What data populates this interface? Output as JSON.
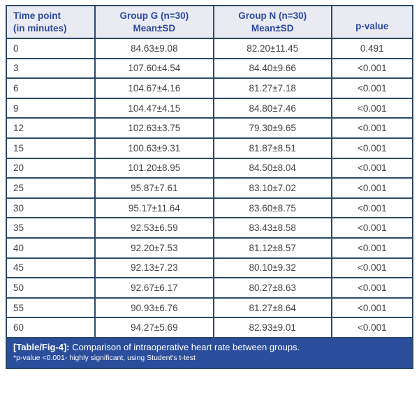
{
  "colors": {
    "border": "#2b4a6b",
    "header_bg": "#eaeaf2",
    "header_text": "#2b4b9f",
    "caption_bg": "#2a4d9c",
    "body_text": "#434343"
  },
  "table": {
    "headers": [
      "Time point\n(in minutes)",
      "Group G (n=30)\nMean±SD",
      "Group N (n=30)\nMean±SD",
      "p-value"
    ],
    "rows": [
      [
        "0",
        "84.63±9.08",
        "82.20±11.45",
        "0.491"
      ],
      [
        "3",
        "107.60±4.54",
        "84.40±9.66",
        "<0.001"
      ],
      [
        "6",
        "104.67±4.16",
        "81.27±7.18",
        "<0.001"
      ],
      [
        "9",
        "104.47±4.15",
        "84.80±7.46",
        "<0.001"
      ],
      [
        "12",
        "102.63±3.75",
        "79.30±9.65",
        "<0.001"
      ],
      [
        "15",
        "100.63±9.31",
        "81.87±8.51",
        "<0.001"
      ],
      [
        "20",
        "101.20±8.95",
        "84.50±8.04",
        "<0.001"
      ],
      [
        "25",
        "95.87±7.61",
        "83.10±7.02",
        "<0.001"
      ],
      [
        "30",
        "95.17±11.64",
        "83.60±8.75",
        "<0.001"
      ],
      [
        "35",
        "92.53±6.59",
        "83.43±8.58",
        "<0.001"
      ],
      [
        "40",
        "92.20±7.53",
        "81.12±8.57",
        "<0.001"
      ],
      [
        "45",
        "92.13±7.23",
        "80.10±9.32",
        "<0.001"
      ],
      [
        "50",
        "92.67±6.17",
        "80.27±8.63",
        "<0.001"
      ],
      [
        "55",
        "90.93±6.76",
        "81.27±8.64",
        "<0.001"
      ],
      [
        "60",
        "94.27±5.69",
        "82.93±9.01",
        "<0.001"
      ]
    ]
  },
  "caption": {
    "label": "[Table/Fig-4]:",
    "title": "Comparison of intraoperative heart rate between groups.",
    "note": "*p-value <0.001- highly significant, using Student's t-test"
  },
  "chart_data": {
    "type": "table",
    "title": "[Table/Fig-4]: Comparison of intraoperative heart rate between groups.",
    "columns": [
      "Time point (in minutes)",
      "Group G (n=30) Mean±SD",
      "Group N (n=30) Mean±SD",
      "p-value"
    ],
    "time_points_minutes": [
      0,
      3,
      6,
      9,
      12,
      15,
      20,
      25,
      30,
      35,
      40,
      45,
      50,
      55,
      60
    ],
    "series": [
      {
        "name": "Group G mean",
        "values": [
          84.63,
          107.6,
          104.67,
          104.47,
          102.63,
          100.63,
          101.2,
          95.87,
          95.17,
          92.53,
          92.2,
          92.13,
          92.67,
          90.93,
          94.27
        ]
      },
      {
        "name": "Group G sd",
        "values": [
          9.08,
          4.54,
          4.16,
          4.15,
          3.75,
          9.31,
          8.95,
          7.61,
          11.64,
          6.59,
          7.53,
          7.23,
          6.17,
          6.76,
          5.69
        ]
      },
      {
        "name": "Group N mean",
        "values": [
          82.2,
          84.4,
          81.27,
          84.8,
          79.3,
          81.87,
          84.5,
          83.1,
          83.6,
          83.43,
          81.12,
          80.1,
          80.27,
          81.27,
          82.93
        ]
      },
      {
        "name": "Group N sd",
        "values": [
          11.45,
          9.66,
          7.18,
          7.46,
          9.65,
          8.51,
          8.04,
          7.02,
          8.75,
          8.58,
          8.57,
          9.32,
          8.63,
          8.64,
          9.01
        ]
      }
    ],
    "p_values": [
      "0.491",
      "<0.001",
      "<0.001",
      "<0.001",
      "<0.001",
      "<0.001",
      "<0.001",
      "<0.001",
      "<0.001",
      "<0.001",
      "<0.001",
      "<0.001",
      "<0.001",
      "<0.001",
      "<0.001"
    ],
    "footnote": "*p-value <0.001- highly significant, using Student's t-test"
  }
}
